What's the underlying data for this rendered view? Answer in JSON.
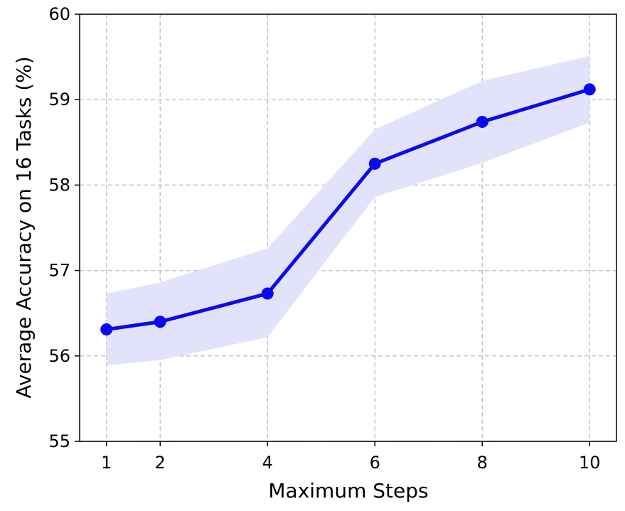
{
  "chart_data": {
    "type": "line",
    "title": "",
    "xlabel": "Maximum Steps",
    "ylabel": "Average Accuracy on 16 Tasks (%)",
    "x": [
      1,
      2,
      4,
      6,
      8,
      10
    ],
    "xticks": [
      "1",
      "2",
      "4",
      "6",
      "8",
      "10"
    ],
    "xlim": [
      0.5,
      10.5
    ],
    "ylim": [
      55,
      60
    ],
    "yticks": [
      "55",
      "56",
      "57",
      "58",
      "59",
      "60"
    ],
    "grid": true,
    "series": [
      {
        "values": [
          56.31,
          56.4,
          56.73,
          58.25,
          58.74,
          59.12
        ],
        "lower": [
          55.89,
          55.95,
          56.22,
          57.86,
          58.26,
          58.73
        ],
        "upper": [
          56.73,
          56.86,
          57.26,
          58.65,
          59.22,
          59.51
        ],
        "color": "#0a0aee",
        "band_color": "#e2e2fb"
      }
    ]
  }
}
